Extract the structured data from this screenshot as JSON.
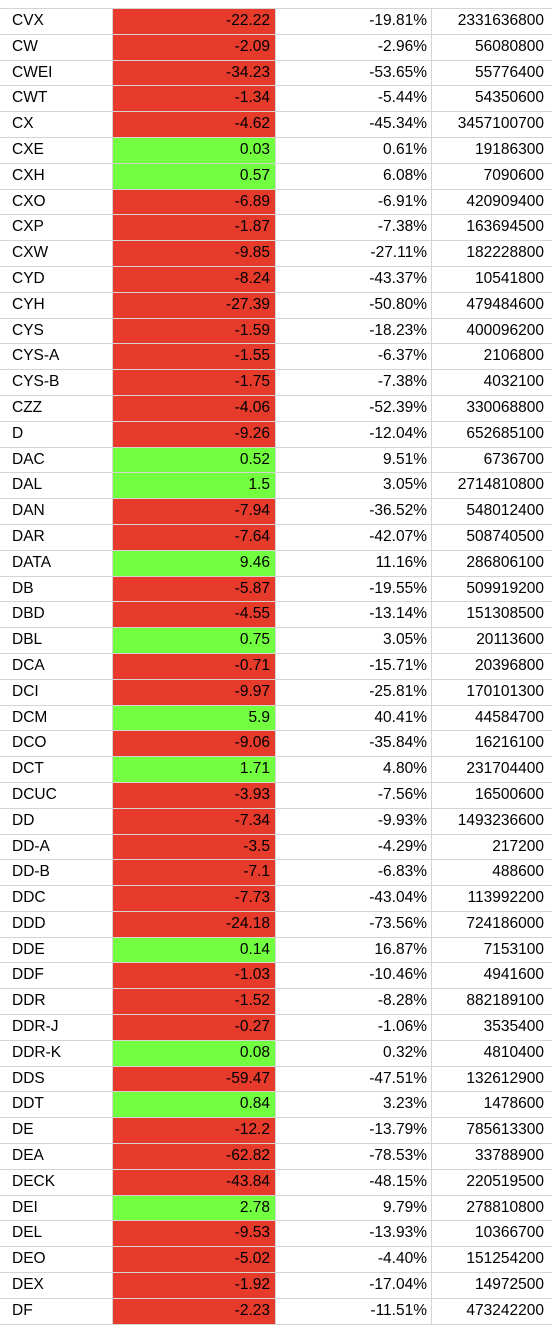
{
  "colors": {
    "negative_fill": "#e63a2b",
    "positive_fill": "#72ff3f",
    "grid": "#d4d4d4"
  },
  "rows": [
    {
      "symbol": "CVX",
      "change": "-22.22",
      "pct": "-19.81%",
      "volume": "2331636800",
      "dir": "neg"
    },
    {
      "symbol": "CW",
      "change": "-2.09",
      "pct": "-2.96%",
      "volume": "56080800",
      "dir": "neg"
    },
    {
      "symbol": "CWEI",
      "change": "-34.23",
      "pct": "-53.65%",
      "volume": "55776400",
      "dir": "neg"
    },
    {
      "symbol": "CWT",
      "change": "-1.34",
      "pct": "-5.44%",
      "volume": "54350600",
      "dir": "neg"
    },
    {
      "symbol": "CX",
      "change": "-4.62",
      "pct": "-45.34%",
      "volume": "3457100700",
      "dir": "neg"
    },
    {
      "symbol": "CXE",
      "change": "0.03",
      "pct": "0.61%",
      "volume": "19186300",
      "dir": "pos"
    },
    {
      "symbol": "CXH",
      "change": "0.57",
      "pct": "6.08%",
      "volume": "7090600",
      "dir": "pos"
    },
    {
      "symbol": "CXO",
      "change": "-6.89",
      "pct": "-6.91%",
      "volume": "420909400",
      "dir": "neg"
    },
    {
      "symbol": "CXP",
      "change": "-1.87",
      "pct": "-7.38%",
      "volume": "163694500",
      "dir": "neg"
    },
    {
      "symbol": "CXW",
      "change": "-9.85",
      "pct": "-27.11%",
      "volume": "182228800",
      "dir": "neg"
    },
    {
      "symbol": "CYD",
      "change": "-8.24",
      "pct": "-43.37%",
      "volume": "10541800",
      "dir": "neg"
    },
    {
      "symbol": "CYH",
      "change": "-27.39",
      "pct": "-50.80%",
      "volume": "479484600",
      "dir": "neg"
    },
    {
      "symbol": "CYS",
      "change": "-1.59",
      "pct": "-18.23%",
      "volume": "400096200",
      "dir": "neg"
    },
    {
      "symbol": "CYS-A",
      "change": "-1.55",
      "pct": "-6.37%",
      "volume": "2106800",
      "dir": "neg"
    },
    {
      "symbol": "CYS-B",
      "change": "-1.75",
      "pct": "-7.38%",
      "volume": "4032100",
      "dir": "neg"
    },
    {
      "symbol": "CZZ",
      "change": "-4.06",
      "pct": "-52.39%",
      "volume": "330068800",
      "dir": "neg"
    },
    {
      "symbol": "D",
      "change": "-9.26",
      "pct": "-12.04%",
      "volume": "652685100",
      "dir": "neg"
    },
    {
      "symbol": "DAC",
      "change": "0.52",
      "pct": "9.51%",
      "volume": "6736700",
      "dir": "pos"
    },
    {
      "symbol": "DAL",
      "change": "1.5",
      "pct": "3.05%",
      "volume": "2714810800",
      "dir": "pos"
    },
    {
      "symbol": "DAN",
      "change": "-7.94",
      "pct": "-36.52%",
      "volume": "548012400",
      "dir": "neg"
    },
    {
      "symbol": "DAR",
      "change": "-7.64",
      "pct": "-42.07%",
      "volume": "508740500",
      "dir": "neg"
    },
    {
      "symbol": "DATA",
      "change": "9.46",
      "pct": "11.16%",
      "volume": "286806100",
      "dir": "pos"
    },
    {
      "symbol": "DB",
      "change": "-5.87",
      "pct": "-19.55%",
      "volume": "509919200",
      "dir": "neg"
    },
    {
      "symbol": "DBD",
      "change": "-4.55",
      "pct": "-13.14%",
      "volume": "151308500",
      "dir": "neg"
    },
    {
      "symbol": "DBL",
      "change": "0.75",
      "pct": "3.05%",
      "volume": "20113600",
      "dir": "pos"
    },
    {
      "symbol": "DCA",
      "change": "-0.71",
      "pct": "-15.71%",
      "volume": "20396800",
      "dir": "neg"
    },
    {
      "symbol": "DCI",
      "change": "-9.97",
      "pct": "-25.81%",
      "volume": "170101300",
      "dir": "neg"
    },
    {
      "symbol": "DCM",
      "change": "5.9",
      "pct": "40.41%",
      "volume": "44584700",
      "dir": "pos"
    },
    {
      "symbol": "DCO",
      "change": "-9.06",
      "pct": "-35.84%",
      "volume": "16216100",
      "dir": "neg"
    },
    {
      "symbol": "DCT",
      "change": "1.71",
      "pct": "4.80%",
      "volume": "231704400",
      "dir": "pos"
    },
    {
      "symbol": "DCUC",
      "change": "-3.93",
      "pct": "-7.56%",
      "volume": "16500600",
      "dir": "neg"
    },
    {
      "symbol": "DD",
      "change": "-7.34",
      "pct": "-9.93%",
      "volume": "1493236600",
      "dir": "neg"
    },
    {
      "symbol": "DD-A",
      "change": "-3.5",
      "pct": "-4.29%",
      "volume": "217200",
      "dir": "neg"
    },
    {
      "symbol": "DD-B",
      "change": "-7.1",
      "pct": "-6.83%",
      "volume": "488600",
      "dir": "neg"
    },
    {
      "symbol": "DDC",
      "change": "-7.73",
      "pct": "-43.04%",
      "volume": "113992200",
      "dir": "neg"
    },
    {
      "symbol": "DDD",
      "change": "-24.18",
      "pct": "-73.56%",
      "volume": "724186000",
      "dir": "neg"
    },
    {
      "symbol": "DDE",
      "change": "0.14",
      "pct": "16.87%",
      "volume": "7153100",
      "dir": "pos"
    },
    {
      "symbol": "DDF",
      "change": "-1.03",
      "pct": "-10.46%",
      "volume": "4941600",
      "dir": "neg"
    },
    {
      "symbol": "DDR",
      "change": "-1.52",
      "pct": "-8.28%",
      "volume": "882189100",
      "dir": "neg"
    },
    {
      "symbol": "DDR-J",
      "change": "-0.27",
      "pct": "-1.06%",
      "volume": "3535400",
      "dir": "neg"
    },
    {
      "symbol": "DDR-K",
      "change": "0.08",
      "pct": "0.32%",
      "volume": "4810400",
      "dir": "pos"
    },
    {
      "symbol": "DDS",
      "change": "-59.47",
      "pct": "-47.51%",
      "volume": "132612900",
      "dir": "neg"
    },
    {
      "symbol": "DDT",
      "change": "0.84",
      "pct": "3.23%",
      "volume": "1478600",
      "dir": "pos"
    },
    {
      "symbol": "DE",
      "change": "-12.2",
      "pct": "-13.79%",
      "volume": "785613300",
      "dir": "neg"
    },
    {
      "symbol": "DEA",
      "change": "-62.82",
      "pct": "-78.53%",
      "volume": "33788900",
      "dir": "neg"
    },
    {
      "symbol": "DECK",
      "change": "-43.84",
      "pct": "-48.15%",
      "volume": "220519500",
      "dir": "neg"
    },
    {
      "symbol": "DEI",
      "change": "2.78",
      "pct": "9.79%",
      "volume": "278810800",
      "dir": "pos"
    },
    {
      "symbol": "DEL",
      "change": "-9.53",
      "pct": "-13.93%",
      "volume": "10366700",
      "dir": "neg"
    },
    {
      "symbol": "DEO",
      "change": "-5.02",
      "pct": "-4.40%",
      "volume": "151254200",
      "dir": "neg"
    },
    {
      "symbol": "DEX",
      "change": "-1.92",
      "pct": "-17.04%",
      "volume": "14972500",
      "dir": "neg"
    },
    {
      "symbol": "DF",
      "change": "-2.23",
      "pct": "-11.51%",
      "volume": "473242200",
      "dir": "neg"
    }
  ]
}
